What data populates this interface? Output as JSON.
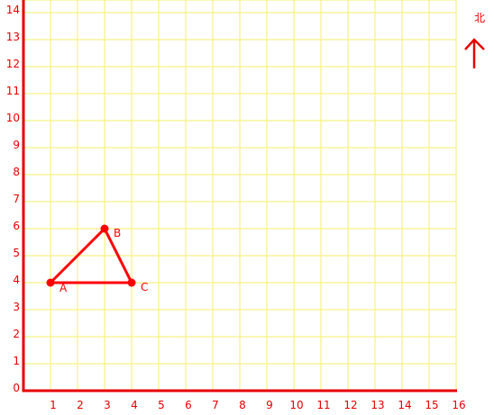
{
  "grid": {
    "x_max": 16,
    "y_max": 14,
    "x_labels": [
      "1",
      "2",
      "3",
      "4",
      "5",
      "6",
      "7",
      "8",
      "9",
      "10",
      "11",
      "12",
      "13",
      "14",
      "15",
      "16"
    ],
    "y_labels": [
      "0",
      "1",
      "2",
      "3",
      "4",
      "5",
      "6",
      "7",
      "8",
      "9",
      "10",
      "11",
      "12",
      "13",
      "14"
    ],
    "grid_color": "#f5ef6a",
    "axis_color": "#e60000",
    "label_color": "#e60000"
  },
  "triangle": {
    "color": "#ff0000",
    "points": [
      {
        "label": "A",
        "x": 1,
        "y": 4
      },
      {
        "label": "B",
        "x": 3,
        "y": 6
      },
      {
        "label": "C",
        "x": 4,
        "y": 4
      }
    ]
  },
  "north": {
    "label": "北",
    "icon": "north-arrow-icon",
    "color": "#e60000"
  }
}
